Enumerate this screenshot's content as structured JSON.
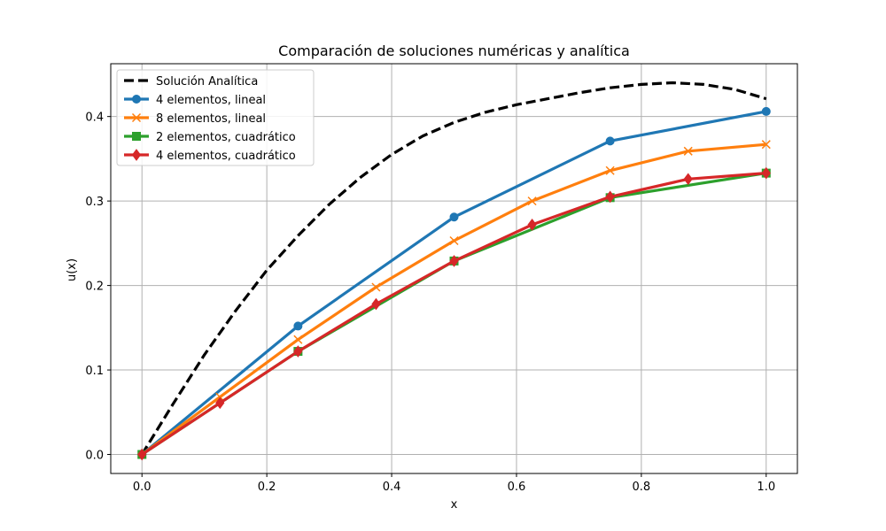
{
  "chart_data": {
    "type": "line",
    "title": "Comparación de soluciones numéricas y analítica",
    "xlabel": "x",
    "ylabel": "u(x)",
    "xlim": [
      -0.05,
      1.05
    ],
    "ylim": [
      -0.0225,
      0.4625
    ],
    "xticks": [
      "0.0",
      "0.2",
      "0.4",
      "0.6",
      "0.8",
      "1.0"
    ],
    "yticks": [
      "0.0",
      "0.1",
      "0.2",
      "0.3",
      "0.4"
    ],
    "grid": true,
    "legend_position": "upper-left",
    "series": [
      {
        "name": "Solución Analítica",
        "color": "#000000",
        "style": "dashed",
        "marker": "none",
        "x": [
          0.0,
          0.05,
          0.1,
          0.15,
          0.2,
          0.25,
          0.3,
          0.35,
          0.4,
          0.45,
          0.5,
          0.55,
          0.6,
          0.65,
          0.7,
          0.75,
          0.8,
          0.85,
          0.9,
          0.95,
          1.0
        ],
        "y": [
          0.0,
          0.06,
          0.118,
          0.17,
          0.218,
          0.259,
          0.296,
          0.328,
          0.355,
          0.377,
          0.393,
          0.405,
          0.414,
          0.421,
          0.428,
          0.434,
          0.438,
          0.44,
          0.438,
          0.432,
          0.421
        ]
      },
      {
        "name": "4 elementos, lineal",
        "color": "#1f77b4",
        "style": "solid",
        "marker": "circle",
        "x": [
          0.0,
          0.25,
          0.5,
          0.75,
          1.0
        ],
        "y": [
          0.0,
          0.152,
          0.281,
          0.371,
          0.406
        ]
      },
      {
        "name": "8 elementos, lineal",
        "color": "#ff7f0e",
        "style": "solid",
        "marker": "x",
        "x": [
          0.0,
          0.125,
          0.25,
          0.375,
          0.5,
          0.625,
          0.75,
          0.875,
          1.0
        ],
        "y": [
          0.0,
          0.068,
          0.136,
          0.198,
          0.253,
          0.3,
          0.336,
          0.359,
          0.367
        ]
      },
      {
        "name": "2 elementos, cuadrático",
        "color": "#2ca02c",
        "style": "solid",
        "marker": "square",
        "x": [
          0.0,
          0.25,
          0.5,
          0.75,
          1.0
        ],
        "y": [
          0.0,
          0.122,
          0.229,
          0.304,
          0.333
        ]
      },
      {
        "name": "4 elementos, cuadrático",
        "color": "#d62728",
        "style": "solid",
        "marker": "diamond",
        "x": [
          0.0,
          0.125,
          0.25,
          0.375,
          0.5,
          0.625,
          0.75,
          0.875,
          1.0
        ],
        "y": [
          0.0,
          0.061,
          0.122,
          0.178,
          0.229,
          0.272,
          0.305,
          0.326,
          0.333
        ]
      }
    ]
  }
}
